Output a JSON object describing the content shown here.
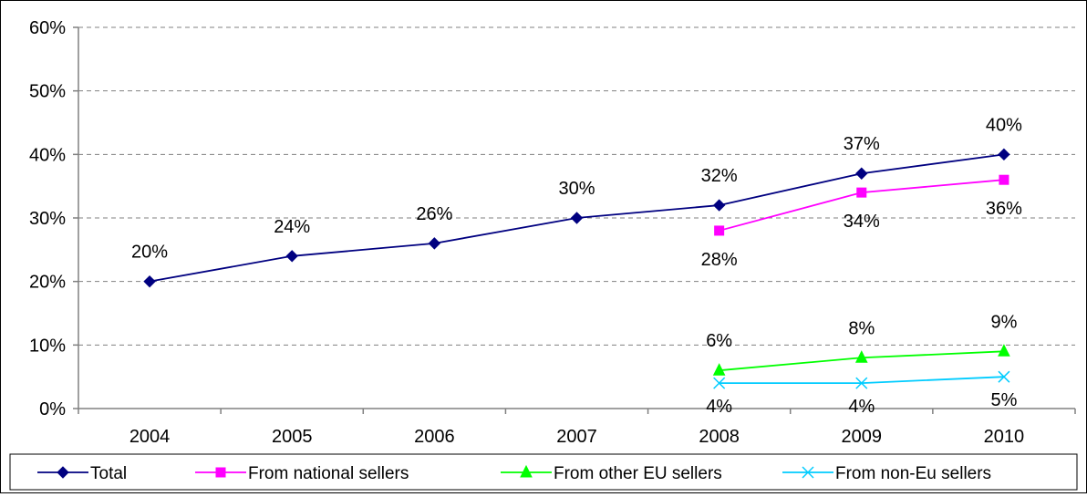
{
  "chart_data": {
    "type": "line",
    "categories": [
      "2004",
      "2005",
      "2006",
      "2007",
      "2008",
      "2009",
      "2010"
    ],
    "ylim": [
      0,
      60
    ],
    "yticks": [
      0,
      10,
      20,
      30,
      40,
      50,
      60
    ],
    "ytick_labels": [
      "0%",
      "10%",
      "20%",
      "30%",
      "40%",
      "50%",
      "60%"
    ],
    "grid": true,
    "legend_position": "bottom",
    "series": [
      {
        "name": "Total",
        "color": "#000080",
        "marker": "diamond",
        "values": [
          20,
          24,
          26,
          30,
          32,
          37,
          40
        ],
        "labels": [
          "20%",
          "24%",
          "26%",
          "30%",
          "32%",
          "37%",
          "40%"
        ]
      },
      {
        "name": "From national sellers",
        "color": "#ff00ff",
        "marker": "square",
        "values": [
          null,
          null,
          null,
          null,
          28,
          34,
          36
        ],
        "labels": [
          null,
          null,
          null,
          null,
          "28%",
          "34%",
          "36%"
        ]
      },
      {
        "name": "From other EU sellers",
        "color": "#00ff00",
        "marker": "triangle",
        "values": [
          null,
          null,
          null,
          null,
          6,
          8,
          9
        ],
        "labels": [
          null,
          null,
          null,
          null,
          "6%",
          "8%",
          "9%"
        ]
      },
      {
        "name": "From non-Eu sellers",
        "color": "#00ccff",
        "marker": "x",
        "values": [
          null,
          null,
          null,
          null,
          4,
          4,
          5
        ],
        "labels": [
          null,
          null,
          null,
          null,
          "4%",
          "4%",
          "5%"
        ]
      }
    ]
  }
}
